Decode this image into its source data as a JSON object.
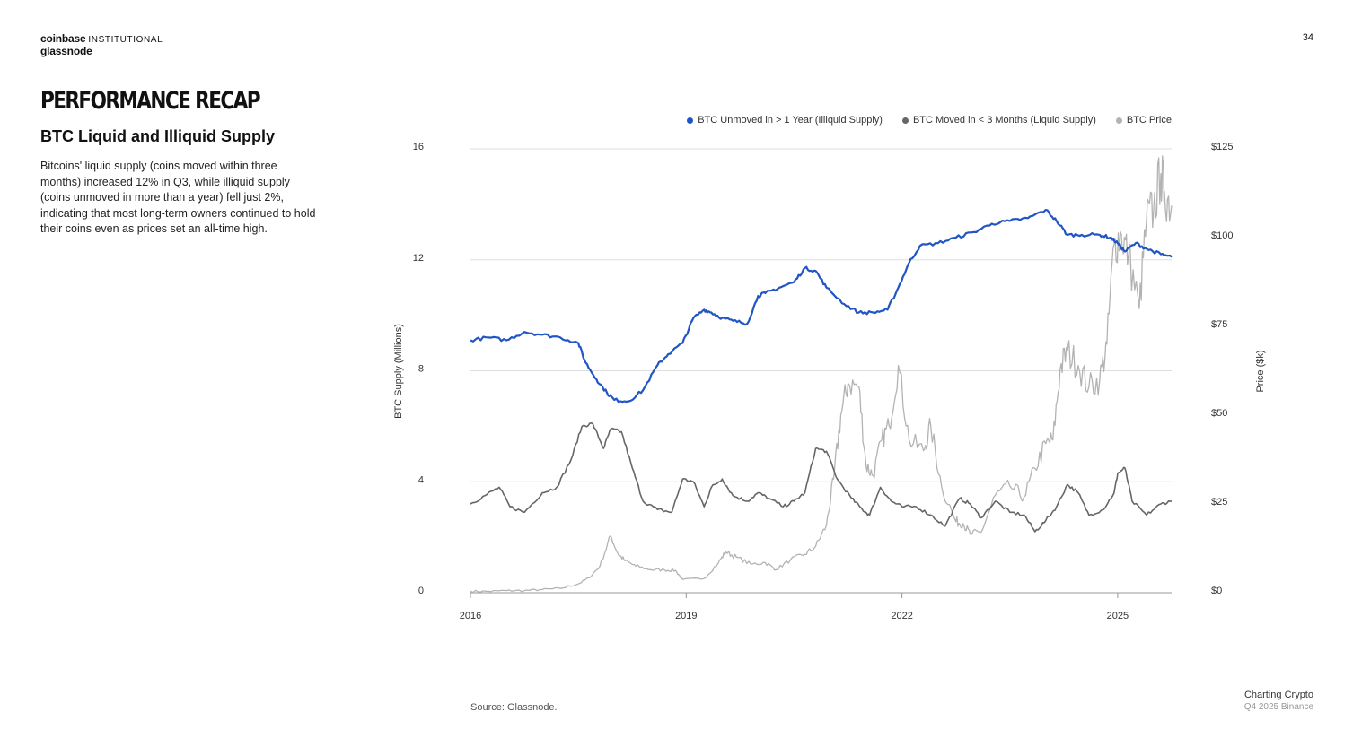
{
  "header": {
    "brand_primary": "coinbase",
    "brand_secondary": "INSTITUTIONAL",
    "brand_partner": "glassnode",
    "page_number": "34"
  },
  "section_title": "PERFORMANCE RECAP",
  "subtitle": "BTC Liquid and Illiquid Supply",
  "body_text": "Bitcoins' liquid supply (coins moved within three months) increased 12% in Q3, while illiquid supply (coins unmoved in more than a year) fell just 2%, indicating that most long-term  owners continued to hold their coins even as prices set an all-time high.",
  "source": "Source: Glassnode.",
  "watermark": {
    "line1": "Charting Crypto",
    "line2": "Q4 2025 Binance"
  },
  "colors": {
    "illiquid": "#2155c4",
    "liquid": "#666666",
    "price": "#b3b3b3",
    "grid": "#dddddd"
  },
  "chart_data": {
    "type": "line",
    "ylabel": "BTC Supply (Millions)",
    "ylabel_right": "Price ($k)",
    "ylim": [
      0,
      16
    ],
    "ylim_right": [
      0,
      125
    ],
    "y_ticks": [
      "0",
      "4",
      "8",
      "12",
      "16"
    ],
    "y_ticks_right": [
      "$0",
      "$25",
      "$50",
      "$75",
      "$100",
      "$125"
    ],
    "x_ticks": [
      "2016",
      "2019",
      "2022",
      "2025"
    ],
    "xlim": [
      2016.0,
      2025.75
    ],
    "legend_position": "top-right",
    "series": [
      {
        "name": "BTC Unmoved in > 1 Year (Illiquid Supply)",
        "axis": "left",
        "x": [
          2016.0,
          2016.25,
          2016.5,
          2016.75,
          2017.0,
          2017.25,
          2017.5,
          2017.6,
          2017.75,
          2017.9,
          2018.0,
          2018.2,
          2018.4,
          2018.6,
          2018.75,
          2018.95,
          2019.1,
          2019.25,
          2019.35,
          2019.5,
          2019.65,
          2019.85,
          2020.0,
          2020.1,
          2020.3,
          2020.5,
          2020.65,
          2020.8,
          2020.95,
          2021.2,
          2021.4,
          2021.6,
          2021.8,
          2021.95,
          2022.1,
          2022.25,
          2022.5,
          2022.75,
          2023.0,
          2023.25,
          2023.5,
          2023.75,
          2024.0,
          2024.15,
          2024.3,
          2024.5,
          2024.75,
          2024.9,
          2025.0,
          2025.1,
          2025.25,
          2025.4,
          2025.6,
          2025.75
        ],
        "values": [
          9.1,
          9.2,
          9.1,
          9.4,
          9.3,
          9.2,
          9.0,
          8.3,
          7.7,
          7.2,
          6.95,
          6.9,
          7.3,
          8.2,
          8.6,
          9.0,
          9.9,
          10.2,
          10.1,
          9.9,
          9.8,
          9.7,
          10.7,
          10.8,
          11.0,
          11.2,
          11.7,
          11.6,
          11.0,
          10.4,
          10.1,
          10.1,
          10.2,
          11.0,
          11.9,
          12.5,
          12.6,
          12.8,
          13.0,
          13.3,
          13.4,
          13.5,
          13.8,
          13.4,
          12.9,
          12.9,
          12.9,
          12.8,
          12.6,
          12.3,
          12.6,
          12.4,
          12.2,
          12.1
        ]
      },
      {
        "name": "BTC Moved in < 3 Months (Liquid Supply)",
        "axis": "left",
        "x": [
          2016.0,
          2016.2,
          2016.4,
          2016.55,
          2016.75,
          2017.0,
          2017.2,
          2017.4,
          2017.55,
          2017.7,
          2017.85,
          2017.95,
          2018.1,
          2018.25,
          2018.4,
          2018.6,
          2018.8,
          2018.95,
          2019.1,
          2019.25,
          2019.35,
          2019.5,
          2019.65,
          2019.85,
          2020.0,
          2020.15,
          2020.35,
          2020.5,
          2020.65,
          2020.8,
          2020.95,
          2021.1,
          2021.3,
          2021.45,
          2021.55,
          2021.7,
          2021.85,
          2022.0,
          2022.2,
          2022.4,
          2022.6,
          2022.8,
          2022.95,
          2023.1,
          2023.3,
          2023.5,
          2023.7,
          2023.85,
          2024.0,
          2024.15,
          2024.3,
          2024.45,
          2024.6,
          2024.8,
          2024.95,
          2025.0,
          2025.1,
          2025.2,
          2025.4,
          2025.6,
          2025.75
        ],
        "values": [
          3.2,
          3.5,
          3.8,
          3.1,
          2.9,
          3.6,
          3.8,
          4.8,
          6.0,
          6.1,
          5.2,
          5.9,
          5.8,
          4.5,
          3.3,
          3.0,
          2.9,
          4.1,
          4.0,
          3.1,
          3.8,
          4.1,
          3.5,
          3.3,
          3.6,
          3.4,
          3.1,
          3.3,
          3.6,
          5.2,
          5.1,
          4.1,
          3.4,
          3.0,
          2.8,
          3.8,
          3.3,
          3.1,
          3.1,
          2.8,
          2.4,
          3.4,
          3.2,
          2.7,
          3.3,
          2.9,
          2.8,
          2.2,
          2.6,
          3.1,
          3.9,
          3.6,
          2.8,
          3.0,
          3.6,
          4.3,
          4.5,
          3.3,
          2.8,
          3.2,
          3.3
        ]
      },
      {
        "name": "BTC Price",
        "axis": "right",
        "x": [
          2016.0,
          2016.25,
          2016.5,
          2016.75,
          2017.0,
          2017.25,
          2017.5,
          2017.65,
          2017.8,
          2017.95,
          2018.05,
          2018.15,
          2018.3,
          2018.5,
          2018.7,
          2018.85,
          2018.95,
          2019.25,
          2019.45,
          2019.55,
          2019.7,
          2019.9,
          2020.1,
          2020.25,
          2020.45,
          2020.65,
          2020.8,
          2020.95,
          2021.05,
          2021.15,
          2021.25,
          2021.4,
          2021.5,
          2021.6,
          2021.72,
          2021.82,
          2021.95,
          2022.1,
          2022.3,
          2022.4,
          2022.55,
          2022.75,
          2022.85,
          2022.95,
          2023.1,
          2023.3,
          2023.5,
          2023.7,
          2023.85,
          2024.0,
          2024.1,
          2024.2,
          2024.3,
          2024.45,
          2024.6,
          2024.75,
          2024.85,
          2024.95,
          2025.05,
          2025.15,
          2025.3,
          2025.4,
          2025.5,
          2025.6,
          2025.65,
          2025.75
        ],
        "values": [
          0.4,
          0.4,
          0.6,
          0.6,
          0.9,
          1.2,
          2.5,
          4.2,
          7.5,
          16.0,
          11.0,
          9.0,
          7.5,
          6.5,
          6.4,
          6.3,
          3.7,
          4.0,
          8.5,
          11.5,
          10.0,
          8.0,
          8.5,
          6.5,
          9.3,
          10.8,
          13.0,
          19.0,
          32.0,
          50.0,
          59.0,
          58.0,
          36.0,
          33.0,
          43.0,
          47.0,
          64.0,
          43.0,
          40.0,
          47.0,
          30.0,
          20.0,
          19.5,
          16.5,
          17.0,
          27.5,
          30.0,
          27.0,
          35.0,
          42.0,
          43.0,
          63.0,
          68.0,
          64.0,
          58.0,
          60.0,
          70.0,
          98.0,
          101.0,
          95.0,
          80.0,
          105.0,
          108.0,
          118.0,
          113.0,
          109.0
        ]
      }
    ]
  }
}
